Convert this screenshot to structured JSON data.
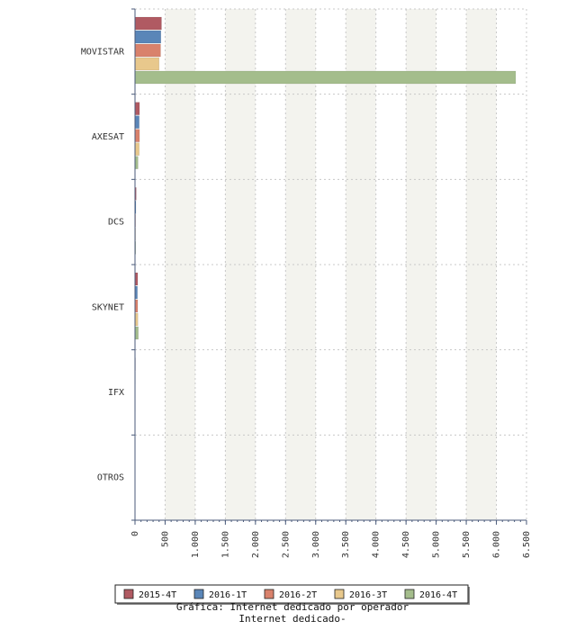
{
  "chart_data": {
    "type": "bar",
    "orientation": "horizontal",
    "categories": [
      "MOVISTAR",
      "AXESAT",
      "DCS",
      "SKYNET",
      "IFX",
      "OTROS"
    ],
    "series": [
      {
        "name": "2015-4T",
        "color": "#b05a62",
        "values": [
          440,
          75,
          20,
          45,
          8,
          3
        ]
      },
      {
        "name": "2016-1T",
        "color": "#5a86b8",
        "values": [
          430,
          70,
          15,
          40,
          6,
          2
        ]
      },
      {
        "name": "2016-2T",
        "color": "#d9826c",
        "values": [
          425,
          75,
          10,
          45,
          5,
          2
        ]
      },
      {
        "name": "2016-3T",
        "color": "#e8c88c",
        "values": [
          400,
          70,
          10,
          48,
          5,
          2
        ]
      },
      {
        "name": "2016-4T",
        "color": "#a4bd8c",
        "values": [
          6320,
          50,
          12,
          55,
          4,
          2
        ]
      }
    ],
    "xlim": [
      0,
      6500
    ],
    "xticks": [
      0,
      500,
      1000,
      1500,
      2000,
      2500,
      3000,
      3500,
      4000,
      4500,
      5000,
      5500,
      6000,
      6500
    ],
    "xtick_labels": [
      "0",
      "500",
      "1.000",
      "1.500",
      "2.000",
      "2.500",
      "3.000",
      "3.500",
      "4.000",
      "4.500",
      "5.000",
      "5.500",
      "6.000",
      "6.500"
    ],
    "grid": true,
    "legend_position": "bottom",
    "title_lines": [
      "Gráfica: Internet dedicado por operador",
      "Internet dedicado-"
    ]
  }
}
